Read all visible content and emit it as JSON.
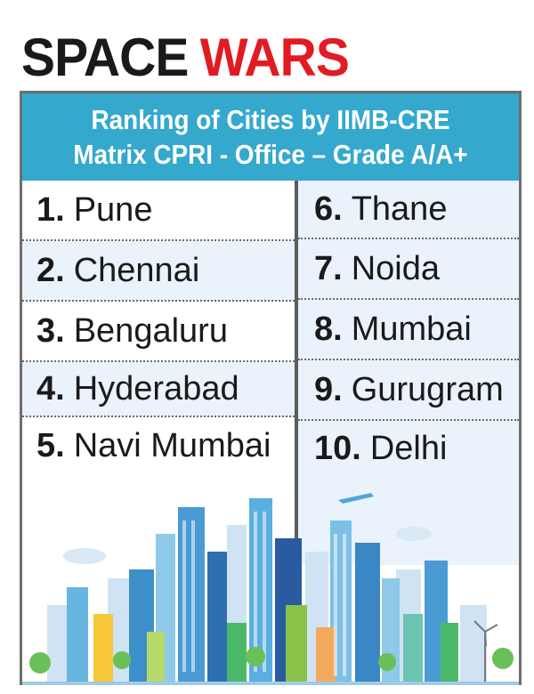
{
  "title": {
    "part1": "SPACE",
    "part2": "WARS"
  },
  "header": {
    "line1": "Ranking of Cities by IIMB-CRE",
    "line2": "Matrix CPRI - Office – Grade A/A+"
  },
  "rankings_left": [
    {
      "rank": "1.",
      "city": "Pune"
    },
    {
      "rank": "2.",
      "city": "Chennai"
    },
    {
      "rank": "3.",
      "city": "Bengaluru"
    },
    {
      "rank": "4.",
      "city": "Hyderabad"
    },
    {
      "rank": "5.",
      "city": "Navi Mumbai"
    }
  ],
  "rankings_right": [
    {
      "rank": "6.",
      "city": "Thane"
    },
    {
      "rank": "7.",
      "city": "Noida"
    },
    {
      "rank": "8.",
      "city": "Mumbai"
    },
    {
      "rank": "9.",
      "city": "Gurugram"
    },
    {
      "rank": "10.",
      "city": "Delhi"
    }
  ],
  "colors": {
    "title_black": "#1a1a1a",
    "title_red": "#e21b23",
    "header_bg": "#35a8cd",
    "row_shade": "#eaf2fb"
  },
  "illustration": "city-skyline-illustration"
}
